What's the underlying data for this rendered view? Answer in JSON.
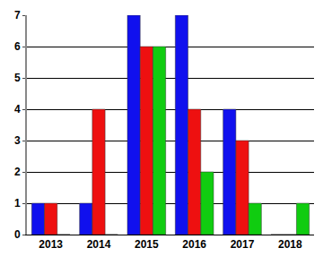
{
  "chart_data": {
    "type": "bar",
    "categories": [
      "2013",
      "2014",
      "2015",
      "2016",
      "2017",
      "2018"
    ],
    "series": [
      {
        "color": "#1010ee",
        "values": [
          1,
          1,
          7,
          7,
          4,
          0
        ]
      },
      {
        "color": "#ee1010",
        "values": [
          1,
          4,
          6,
          4,
          3,
          0
        ]
      },
      {
        "color": "#10cc10",
        "values": [
          0,
          0,
          6,
          2,
          1,
          1
        ]
      }
    ],
    "ylim": [
      0,
      7
    ],
    "yticks": [
      0,
      1,
      2,
      3,
      4,
      5,
      6,
      7
    ],
    "grid": true
  }
}
